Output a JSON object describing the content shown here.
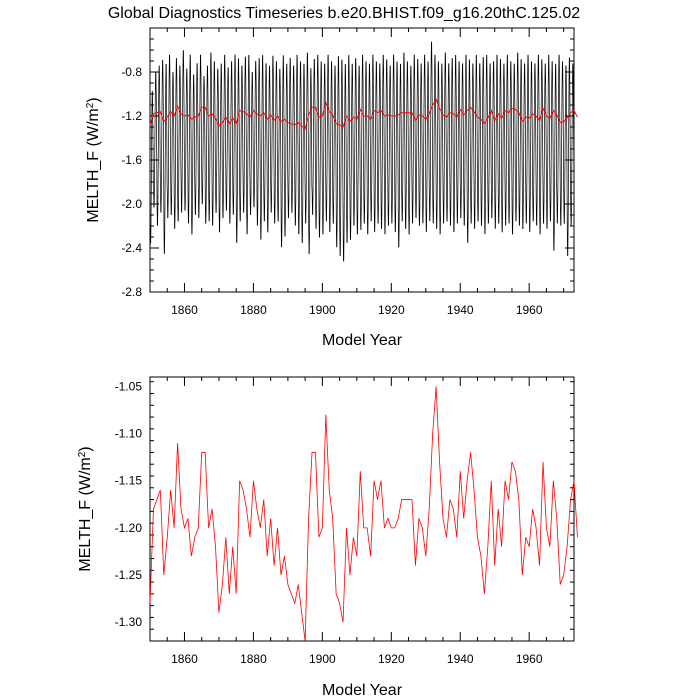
{
  "title": "Global Diagnostics Timeseries b.e20.BHIST.f09_g16.20thC.125.02",
  "colors": {
    "monthly": "#000000",
    "annual": "#ff0000",
    "axes": "#000000"
  },
  "chart_data": [
    {
      "type": "line",
      "title": "Global Diagnostics Timeseries b.e20.BHIST.f09_g16.20thC.125.02",
      "xlabel": "Model Year",
      "ylabel_main": "MELTH_F (W/m",
      "ylabel_sup": "2",
      "ylabel_close": ")",
      "xlim": [
        1850,
        1973
      ],
      "ylim": [
        -2.8,
        -0.4
      ],
      "xticks": [
        1860,
        1880,
        1900,
        1920,
        1940,
        1960
      ],
      "yticks": [
        -2.8,
        -2.4,
        -2.0,
        -1.6,
        -1.2,
        -0.8
      ],
      "ytick_labels": [
        "-2.8",
        "-2.4",
        "-2.0",
        "-1.6",
        "-1.2",
        "-0.8"
      ],
      "series": [
        {
          "kind": "monthly",
          "color": "#000000",
          "seasonal_max_by_year": [
            -0.95,
            -0.78,
            -0.72,
            -0.67,
            -0.7,
            -0.62,
            -0.78,
            -0.65,
            -0.72,
            -0.58,
            -0.75,
            -0.62,
            -0.8,
            -0.7,
            -0.62,
            -0.82,
            -0.72,
            -0.6,
            -0.68,
            -0.75,
            -0.7,
            -0.62,
            -0.74,
            -0.68,
            -0.62,
            -0.65,
            -0.72,
            -0.64,
            -0.62,
            -0.78,
            -0.68,
            -0.65,
            -0.62,
            -0.7,
            -0.72,
            -0.63,
            -0.68,
            -0.75,
            -0.62,
            -0.7,
            -0.65,
            -0.72,
            -0.62,
            -0.68,
            -0.7,
            -0.6,
            -0.74,
            -0.66,
            -0.62,
            -0.68,
            -0.7,
            -0.62,
            -0.68,
            -0.72,
            -0.63,
            -0.66,
            -0.7,
            -0.62,
            -0.7,
            -0.65,
            -0.72,
            -0.62,
            -0.68,
            -0.7,
            -0.62,
            -0.68,
            -0.7,
            -0.62,
            -0.66,
            -0.72,
            -0.62,
            -0.68,
            -0.7,
            -0.6,
            -0.68,
            -0.72,
            -0.62,
            -0.66,
            -0.7,
            -0.62,
            -0.68,
            -0.5,
            -0.62,
            -0.68,
            -0.7,
            -0.6,
            -0.7,
            -0.65,
            -0.62,
            -0.68,
            -0.7,
            -0.62,
            -0.66,
            -0.7,
            -0.62,
            -0.7,
            -0.64,
            -0.62,
            -0.7,
            -0.68,
            -0.62,
            -0.66,
            -0.7,
            -0.62,
            -0.68,
            -0.7,
            -0.6,
            -0.66,
            -0.7,
            -0.62,
            -0.68,
            -0.7,
            -0.62,
            -0.66,
            -0.7,
            -0.62,
            -0.68,
            -0.7,
            -0.62,
            -0.68,
            -0.72,
            -0.64,
            -0.7
          ],
          "seasonal_min_by_year": [
            -2.38,
            -2.05,
            -2.22,
            -2.1,
            -2.48,
            -2.15,
            -2.12,
            -2.25,
            -2.18,
            -2.1,
            -2.08,
            -2.2,
            -2.3,
            -2.12,
            -2.15,
            -2.02,
            -2.2,
            -2.18,
            -2.22,
            -2.1,
            -2.28,
            -2.15,
            -2.08,
            -2.2,
            -2.12,
            -2.38,
            -2.18,
            -2.1,
            -2.3,
            -2.12,
            -2.05,
            -2.22,
            -2.35,
            -2.18,
            -2.28,
            -2.1,
            -2.2,
            -2.18,
            -2.42,
            -2.32,
            -2.15,
            -2.1,
            -2.22,
            -2.3,
            -2.38,
            -2.2,
            -2.48,
            -2.12,
            -2.25,
            -2.33,
            -2.3,
            -2.18,
            -2.28,
            -2.2,
            -2.42,
            -2.5,
            -2.55,
            -2.38,
            -2.35,
            -2.22,
            -2.3,
            -2.26,
            -2.2,
            -2.3,
            -2.18,
            -2.28,
            -2.2,
            -2.25,
            -2.3,
            -2.22,
            -2.2,
            -2.28,
            -2.42,
            -2.18,
            -2.25,
            -2.3,
            -2.2,
            -2.15,
            -2.22,
            -2.2,
            -2.28,
            -2.18,
            -2.2,
            -2.25,
            -2.3,
            -2.2,
            -2.18,
            -2.22,
            -2.28,
            -2.2,
            -2.15,
            -2.22,
            -2.38,
            -2.2,
            -2.25,
            -2.18,
            -2.22,
            -2.3,
            -2.2,
            -2.15,
            -2.25,
            -2.2,
            -2.28,
            -2.22,
            -2.2,
            -2.3,
            -2.18,
            -2.22,
            -2.25,
            -2.2,
            -2.28,
            -2.18,
            -2.22,
            -2.3,
            -2.2,
            -2.25,
            -2.18,
            -2.45,
            -2.2,
            -2.22,
            -2.2,
            -2.5,
            -2.22
          ]
        },
        {
          "kind": "annual",
          "color": "#ff0000",
          "x_start": 1850,
          "x_step": 1,
          "values": [
            -1.28,
            -1.18,
            -1.17,
            -1.16,
            -1.25,
            -1.21,
            -1.16,
            -1.2,
            -1.11,
            -1.18,
            -1.2,
            -1.19,
            -1.23,
            -1.21,
            -1.2,
            -1.12,
            -1.12,
            -1.2,
            -1.18,
            -1.22,
            -1.29,
            -1.26,
            -1.21,
            -1.27,
            -1.22,
            -1.27,
            -1.15,
            -1.16,
            -1.18,
            -1.21,
            -1.15,
            -1.18,
            -1.2,
            -1.17,
            -1.23,
            -1.19,
            -1.24,
            -1.2,
            -1.25,
            -1.23,
            -1.26,
            -1.27,
            -1.28,
            -1.26,
            -1.29,
            -1.32,
            -1.19,
            -1.12,
            -1.12,
            -1.21,
            -1.2,
            -1.08,
            -1.16,
            -1.19,
            -1.27,
            -1.28,
            -1.3,
            -1.2,
            -1.25,
            -1.21,
            -1.23,
            -1.14,
            -1.2,
            -1.2,
            -1.23,
            -1.15,
            -1.17,
            -1.15,
            -1.2,
            -1.19,
            -1.2,
            -1.2,
            -1.19,
            -1.17,
            -1.17,
            -1.17,
            -1.17,
            -1.24,
            -1.19,
            -1.2,
            -1.23,
            -1.18,
            -1.1,
            -1.05,
            -1.13,
            -1.19,
            -1.21,
            -1.17,
            -1.18,
            -1.21,
            -1.14,
            -1.19,
            -1.15,
            -1.12,
            -1.16,
            -1.21,
            -1.23,
            -1.27,
            -1.22,
            -1.15,
            -1.24,
            -1.18,
            -1.22,
            -1.15,
            -1.17,
            -1.13,
            -1.14,
            -1.17,
            -1.25,
            -1.21,
            -1.22,
            -1.18,
            -1.2,
            -1.24,
            -1.13,
            -1.2,
            -1.22,
            -1.15,
            -1.19,
            -1.26,
            -1.25,
            -1.22,
            -1.17,
            -1.15,
            -1.21
          ]
        }
      ]
    },
    {
      "type": "line",
      "xlabel": "Model Year",
      "ylabel_main": "MELTH_F (W/m",
      "ylabel_sup": "2",
      "ylabel_close": ")",
      "xlim": [
        1850,
        1973
      ],
      "ylim": [
        -1.32,
        -1.04
      ],
      "xticks": [
        1860,
        1880,
        1900,
        1920,
        1940,
        1960
      ],
      "yticks": [
        -1.3,
        -1.25,
        -1.2,
        -1.15,
        -1.1,
        -1.05
      ],
      "ytick_labels": [
        "-1.30",
        "-1.25",
        "-1.20",
        "-1.15",
        "-1.10",
        "-1.05"
      ],
      "series": [
        {
          "kind": "annual",
          "color": "#ff0000",
          "x_start": 1850,
          "x_step": 1,
          "values": [
            -1.28,
            -1.18,
            -1.17,
            -1.16,
            -1.25,
            -1.21,
            -1.16,
            -1.2,
            -1.11,
            -1.18,
            -1.2,
            -1.19,
            -1.23,
            -1.21,
            -1.2,
            -1.12,
            -1.12,
            -1.2,
            -1.18,
            -1.22,
            -1.29,
            -1.26,
            -1.21,
            -1.27,
            -1.22,
            -1.27,
            -1.15,
            -1.16,
            -1.18,
            -1.21,
            -1.15,
            -1.18,
            -1.2,
            -1.17,
            -1.23,
            -1.19,
            -1.24,
            -1.2,
            -1.25,
            -1.23,
            -1.26,
            -1.27,
            -1.28,
            -1.26,
            -1.29,
            -1.32,
            -1.19,
            -1.12,
            -1.12,
            -1.21,
            -1.2,
            -1.08,
            -1.16,
            -1.19,
            -1.27,
            -1.28,
            -1.3,
            -1.2,
            -1.25,
            -1.21,
            -1.23,
            -1.14,
            -1.2,
            -1.2,
            -1.23,
            -1.15,
            -1.17,
            -1.15,
            -1.2,
            -1.19,
            -1.2,
            -1.2,
            -1.19,
            -1.17,
            -1.17,
            -1.17,
            -1.17,
            -1.24,
            -1.19,
            -1.2,
            -1.23,
            -1.18,
            -1.1,
            -1.05,
            -1.13,
            -1.19,
            -1.21,
            -1.17,
            -1.18,
            -1.21,
            -1.14,
            -1.19,
            -1.15,
            -1.12,
            -1.16,
            -1.21,
            -1.23,
            -1.27,
            -1.22,
            -1.15,
            -1.24,
            -1.18,
            -1.22,
            -1.15,
            -1.17,
            -1.13,
            -1.14,
            -1.17,
            -1.25,
            -1.21,
            -1.22,
            -1.18,
            -1.2,
            -1.24,
            -1.13,
            -1.2,
            -1.22,
            -1.15,
            -1.19,
            -1.26,
            -1.25,
            -1.22,
            -1.17,
            -1.15,
            -1.21
          ]
        }
      ]
    }
  ]
}
